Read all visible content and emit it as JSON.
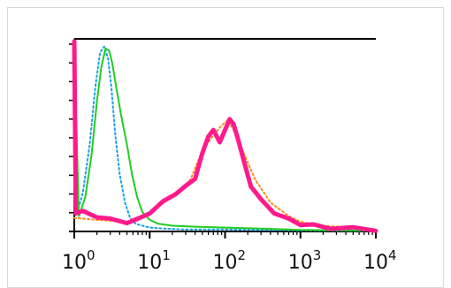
{
  "chart_data": {
    "type": "line",
    "title": "",
    "xlabel": "",
    "ylabel": "",
    "x_scale": "log",
    "xlim": [
      1,
      10000
    ],
    "ylim": [
      0,
      1
    ],
    "grid": false,
    "x_tick_labels": [
      {
        "base": "10",
        "exp": "0",
        "value": 1
      },
      {
        "base": "10",
        "exp": "1",
        "value": 10
      },
      {
        "base": "10",
        "exp": "2",
        "value": 100
      },
      {
        "base": "10",
        "exp": "3",
        "value": 1000
      },
      {
        "base": "10",
        "exp": "4",
        "value": 10000
      }
    ],
    "series": [
      {
        "color": "#1aa0e8",
        "style": "dotted",
        "x": [
          1,
          1.1,
          1.3,
          1.6,
          1.9,
          2.2,
          2.5,
          2.8,
          3.1,
          3.5,
          4,
          4.7,
          5.5,
          6.5,
          8,
          10,
          15,
          30,
          100,
          1000,
          10000
        ],
        "y": [
          0.95,
          0.1,
          0.2,
          0.45,
          0.75,
          0.93,
          0.96,
          0.9,
          0.75,
          0.5,
          0.3,
          0.15,
          0.07,
          0.04,
          0.03,
          0.02,
          0.015,
          0.01,
          0.01,
          0.005,
          0.003
        ]
      },
      {
        "color": "#22cc22",
        "style": "solid",
        "x": [
          1,
          1.15,
          1.4,
          1.7,
          2,
          2.3,
          2.6,
          2.9,
          3.2,
          3.6,
          4.2,
          5,
          5.8,
          6.8,
          8,
          10,
          13,
          20,
          40,
          100,
          300,
          1000,
          10000
        ],
        "y": [
          0.95,
          0.08,
          0.18,
          0.4,
          0.68,
          0.86,
          0.95,
          0.94,
          0.87,
          0.75,
          0.6,
          0.45,
          0.3,
          0.18,
          0.1,
          0.06,
          0.04,
          0.03,
          0.025,
          0.02,
          0.015,
          0.008,
          0.004
        ]
      },
      {
        "color": "#ff8c1a",
        "style": "dotted",
        "x": [
          1,
          2,
          5,
          10,
          20,
          35,
          50,
          70,
          90,
          110,
          140,
          180,
          250,
          400,
          700,
          1000,
          2000,
          5000,
          10000
        ],
        "y": [
          0.07,
          0.06,
          0.05,
          0.1,
          0.18,
          0.27,
          0.42,
          0.5,
          0.55,
          0.58,
          0.5,
          0.4,
          0.27,
          0.15,
          0.08,
          0.05,
          0.03,
          0.02,
          0.01
        ]
      },
      {
        "color": "#ff1a8c",
        "style": "solid",
        "x": [
          1,
          1.05,
          1.3,
          2,
          3,
          5,
          7,
          10,
          15,
          22,
          30,
          40,
          50,
          60,
          70,
          85,
          100,
          115,
          130,
          150,
          180,
          220,
          300,
          450,
          700,
          1000,
          1500,
          2500,
          5000,
          10000
        ],
        "y": [
          0.98,
          0.1,
          0.1,
          0.08,
          0.06,
          0.05,
          0.06,
          0.1,
          0.15,
          0.2,
          0.23,
          0.28,
          0.4,
          0.5,
          0.52,
          0.47,
          0.52,
          0.59,
          0.55,
          0.48,
          0.35,
          0.24,
          0.16,
          0.1,
          0.06,
          0.04,
          0.03,
          0.02,
          0.015,
          0.01
        ]
      }
    ]
  }
}
